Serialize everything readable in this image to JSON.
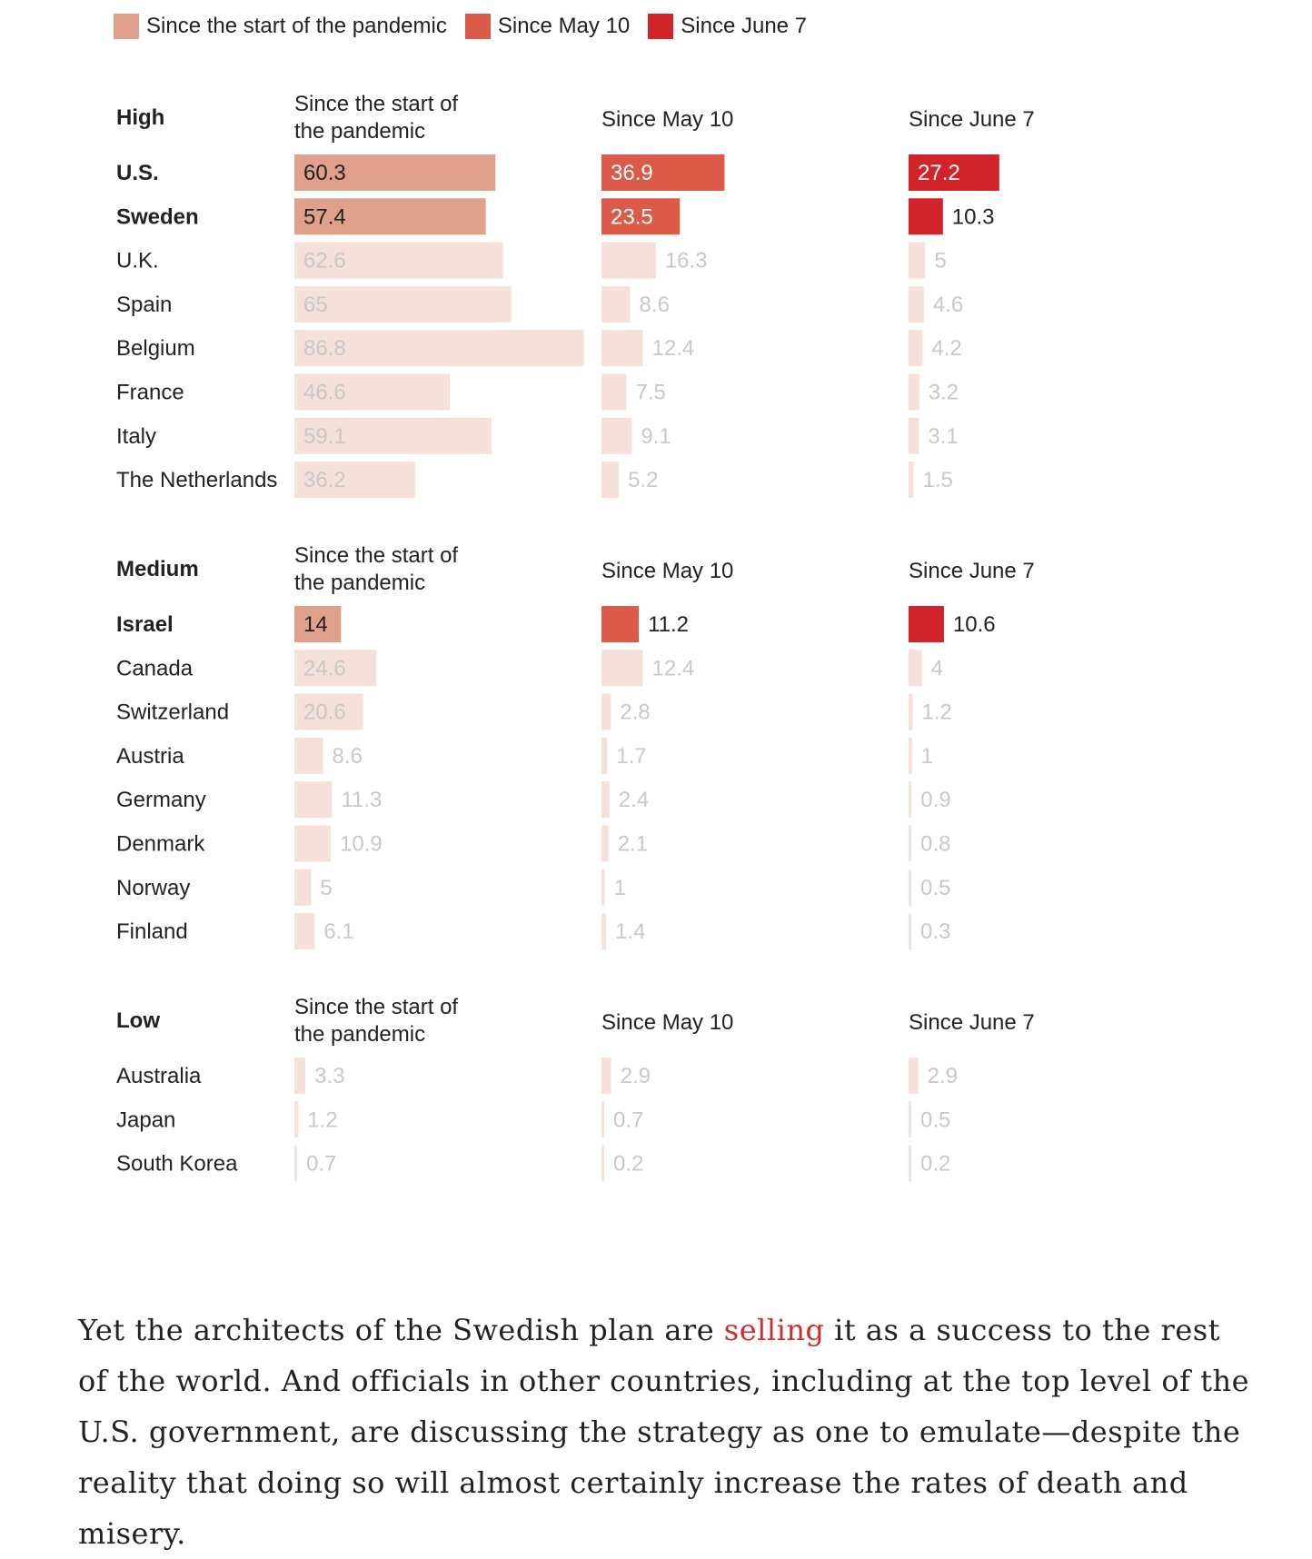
{
  "legend": [
    {
      "label": "Since the start of the pandemic",
      "color": "#dfa18c"
    },
    {
      "label": "Since May 10",
      "color": "#dc5a48"
    },
    {
      "label": "Since June 7",
      "color": "#d2232a"
    }
  ],
  "faded_color": "#f5e0da",
  "faded_text_color": "#c8c8c8",
  "chart_data": {
    "type": "bar",
    "orientation": "horizontal",
    "column_headers": [
      "Since the start of the pandemic",
      "Since May 10",
      "Since June 7"
    ],
    "groups": [
      {
        "name": "High",
        "countries": [
          {
            "name": "U.S.",
            "highlight": true,
            "values": [
              60.3,
              36.9,
              27.2
            ]
          },
          {
            "name": "Sweden",
            "highlight": true,
            "values": [
              57.4,
              23.5,
              10.3
            ]
          },
          {
            "name": "U.K.",
            "highlight": false,
            "values": [
              62.6,
              16.3,
              5
            ]
          },
          {
            "name": "Spain",
            "highlight": false,
            "values": [
              65,
              8.6,
              4.6
            ]
          },
          {
            "name": "Belgium",
            "highlight": false,
            "values": [
              86.8,
              12.4,
              4.2
            ]
          },
          {
            "name": "France",
            "highlight": false,
            "values": [
              46.6,
              7.5,
              3.2
            ]
          },
          {
            "name": "Italy",
            "highlight": false,
            "values": [
              59.1,
              9.1,
              3.1
            ]
          },
          {
            "name": "The Netherlands",
            "highlight": false,
            "values": [
              36.2,
              5.2,
              1.5
            ]
          }
        ]
      },
      {
        "name": "Medium",
        "countries": [
          {
            "name": "Israel",
            "highlight": true,
            "values": [
              14,
              11.2,
              10.6
            ]
          },
          {
            "name": "Canada",
            "highlight": false,
            "values": [
              24.6,
              12.4,
              4
            ]
          },
          {
            "name": "Switzerland",
            "highlight": false,
            "values": [
              20.6,
              2.8,
              1.2
            ]
          },
          {
            "name": "Austria",
            "highlight": false,
            "values": [
              8.6,
              1.7,
              1
            ]
          },
          {
            "name": "Germany",
            "highlight": false,
            "values": [
              11.3,
              2.4,
              0.9
            ]
          },
          {
            "name": "Denmark",
            "highlight": false,
            "values": [
              10.9,
              2.1,
              0.8
            ]
          },
          {
            "name": "Norway",
            "highlight": false,
            "values": [
              5,
              1,
              0.5
            ]
          },
          {
            "name": "Finland",
            "highlight": false,
            "values": [
              6.1,
              1.4,
              0.3
            ]
          }
        ]
      },
      {
        "name": "Low",
        "countries": [
          {
            "name": "Australia",
            "highlight": false,
            "values": [
              3.3,
              2.9,
              2.9
            ]
          },
          {
            "name": "Japan",
            "highlight": false,
            "values": [
              1.2,
              0.7,
              0.5
            ]
          },
          {
            "name": "South Korea",
            "highlight": false,
            "values": [
              0.7,
              0.2,
              0.2
            ]
          }
        ]
      }
    ]
  },
  "article": {
    "text_before": "Yet the architects of the Swedish plan are ",
    "link_text": "selling",
    "text_after": " it as a success to the rest of the world. And officials in other countries, including at the top level of the U.S. government, are discussing the strategy as one to emulate—despite the reality that doing so will almost certainly increase the rates of death and misery."
  }
}
